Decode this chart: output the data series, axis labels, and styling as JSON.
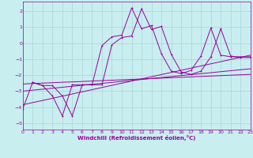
{
  "title": "",
  "xlabel": "Windchill (Refroidissement éolien,°C)",
  "xlim": [
    0,
    23
  ],
  "ylim": [
    -5.4,
    2.6
  ],
  "xticks": [
    0,
    1,
    2,
    3,
    4,
    5,
    6,
    7,
    8,
    9,
    10,
    11,
    12,
    13,
    14,
    15,
    16,
    17,
    18,
    19,
    20,
    21,
    22,
    23
  ],
  "yticks": [
    -5,
    -4,
    -3,
    -2,
    -1,
    0,
    1,
    2
  ],
  "bg_color": "#c8eef0",
  "grid_color": "#b0d8da",
  "line_color": "#990099",
  "curve1_x": [
    0,
    1,
    2,
    3,
    4,
    5,
    6,
    7,
    8,
    9,
    10,
    11,
    12,
    13,
    14,
    15,
    16,
    17,
    18,
    19,
    20,
    21,
    22,
    23
  ],
  "curve1_y": [
    -4.1,
    -2.45,
    -2.65,
    -3.3,
    -4.55,
    -2.6,
    -2.6,
    -2.6,
    -0.15,
    0.4,
    0.5,
    2.2,
    0.9,
    1.1,
    -0.65,
    -1.75,
    -1.9,
    -1.7,
    -0.8,
    0.95,
    -0.75,
    -0.85,
    -0.85,
    -0.85
  ],
  "curve2_x": [
    1,
    2,
    3,
    4,
    5,
    6,
    7,
    8,
    9,
    10,
    11,
    12,
    13,
    14,
    15,
    16,
    17,
    18,
    19,
    20,
    21,
    22,
    23
  ],
  "curve2_y": [
    -2.45,
    -2.65,
    -2.65,
    -3.3,
    -4.55,
    -2.6,
    -2.6,
    -2.6,
    -0.1,
    0.35,
    0.45,
    2.15,
    0.85,
    1.05,
    -0.7,
    -1.8,
    -1.95,
    -1.75,
    -0.85,
    0.9,
    -0.8,
    -0.9,
    -0.9
  ],
  "line1_x": [
    0,
    23
  ],
  "line1_y": [
    -3.85,
    -0.75
  ],
  "line2_x": [
    0,
    23
  ],
  "line2_y": [
    -3.0,
    -1.6
  ],
  "line3_x": [
    0,
    23
  ],
  "line3_y": [
    -2.55,
    -1.95
  ]
}
